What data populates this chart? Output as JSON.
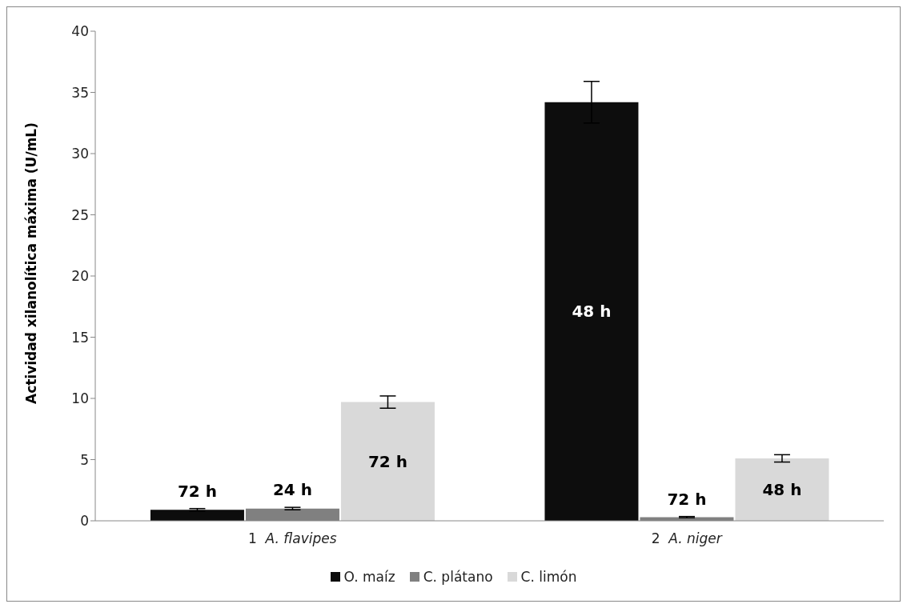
{
  "chart_data": {
    "type": "bar",
    "ylabel": "Actividad xilanolítica máxima (U/mL)",
    "categories": [
      "1  A. flavipes",
      "2  A. niger"
    ],
    "series": [
      {
        "name": "O. maíz",
        "color": "#0d0d0d",
        "values": [
          0.9,
          34.2
        ],
        "errors": [
          0.1,
          1.7
        ]
      },
      {
        "name": "C. plátano",
        "color": "#808080",
        "values": [
          1.0,
          0.3
        ],
        "errors": [
          0.1,
          0.05
        ]
      },
      {
        "name": "C. limón",
        "color": "#d9d9d9",
        "values": [
          9.7,
          5.1
        ],
        "errors": [
          0.5,
          0.3
        ]
      }
    ],
    "annotations": [
      "72 h",
      "24 h",
      "72 h",
      "48 h",
      "72 h",
      "48 h"
    ],
    "ylim": [
      0,
      40
    ],
    "yticks": [
      0,
      5,
      10,
      15,
      20,
      25,
      30,
      35,
      40
    ],
    "grid": false,
    "legend": "bottom"
  }
}
